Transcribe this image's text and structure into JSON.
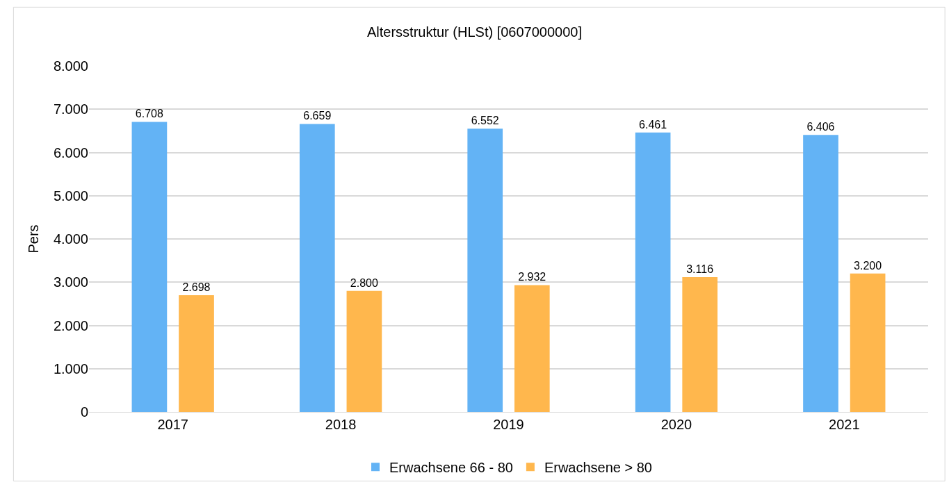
{
  "chart_data": {
    "type": "bar",
    "title": "Altersstruktur (HLSt) [0607000000]",
    "ylabel": "Pers",
    "categories": [
      "2017",
      "2018",
      "2019",
      "2020",
      "2021"
    ],
    "series": [
      {
        "name": "Erwachsene 66 - 80",
        "color": "#63b3f5",
        "values": [
          6708,
          6659,
          6552,
          6461,
          6406
        ],
        "value_labels": [
          "6.708",
          "6.659",
          "6.552",
          "6.461",
          "6.406"
        ]
      },
      {
        "name": "Erwachsene > 80",
        "color": "#ffb74d",
        "values": [
          2698,
          2800,
          2932,
          3116,
          3200
        ],
        "value_labels": [
          "2.698",
          "2.800",
          "2.932",
          "3.116",
          "3.200"
        ]
      }
    ],
    "ylim": [
      0,
      8000
    ],
    "yticks": [
      0,
      {
        "value": 1000,
        "label": "1.000"
      },
      {
        "value": 2000,
        "label": "2.000"
      },
      {
        "value": 3000,
        "label": "3.000"
      },
      {
        "value": 4000,
        "label": "4.000"
      },
      {
        "value": 5000,
        "label": "5.000"
      },
      {
        "value": 6000,
        "label": "6.000"
      },
      {
        "value": 7000,
        "label": "7.000"
      },
      {
        "value": 8000,
        "label": "8.000"
      }
    ],
    "grid": "y",
    "legend": "bottom"
  }
}
